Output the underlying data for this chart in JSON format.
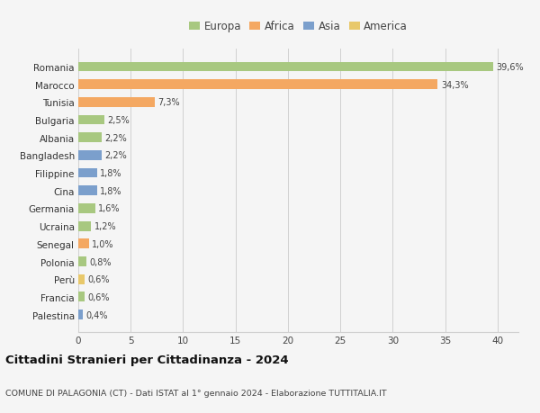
{
  "categories": [
    "Palestina",
    "Francia",
    "Perù",
    "Polonia",
    "Senegal",
    "Ucraina",
    "Germania",
    "Cina",
    "Filippine",
    "Bangladesh",
    "Albania",
    "Bulgaria",
    "Tunisia",
    "Marocco",
    "Romania"
  ],
  "values": [
    0.4,
    0.6,
    0.6,
    0.8,
    1.0,
    1.2,
    1.6,
    1.8,
    1.8,
    2.2,
    2.2,
    2.5,
    7.3,
    34.3,
    39.6
  ],
  "colors": [
    "#7b9fcc",
    "#a8c880",
    "#e8c86a",
    "#a8c880",
    "#f4a862",
    "#a8c880",
    "#a8c880",
    "#7b9fcc",
    "#7b9fcc",
    "#7b9fcc",
    "#a8c880",
    "#a8c880",
    "#f4a862",
    "#f4a862",
    "#a8c880"
  ],
  "labels": [
    "0,4%",
    "0,6%",
    "0,6%",
    "0,8%",
    "1,0%",
    "1,2%",
    "1,6%",
    "1,8%",
    "1,8%",
    "2,2%",
    "2,2%",
    "2,5%",
    "7,3%",
    "34,3%",
    "39,6%"
  ],
  "legend": {
    "Europa": "#a8c880",
    "Africa": "#f4a862",
    "Asia": "#7b9fcc",
    "America": "#e8c86a"
  },
  "title": "Cittadini Stranieri per Cittadinanza - 2024",
  "subtitle": "COMUNE DI PALAGONIA (CT) - Dati ISTAT al 1° gennaio 2024 - Elaborazione TUTTITALIA.IT",
  "xlim": [
    0,
    42
  ],
  "xticks": [
    0,
    5,
    10,
    15,
    20,
    25,
    30,
    35,
    40
  ],
  "background_color": "#f5f5f5",
  "grid_color": "#d0d0d0"
}
